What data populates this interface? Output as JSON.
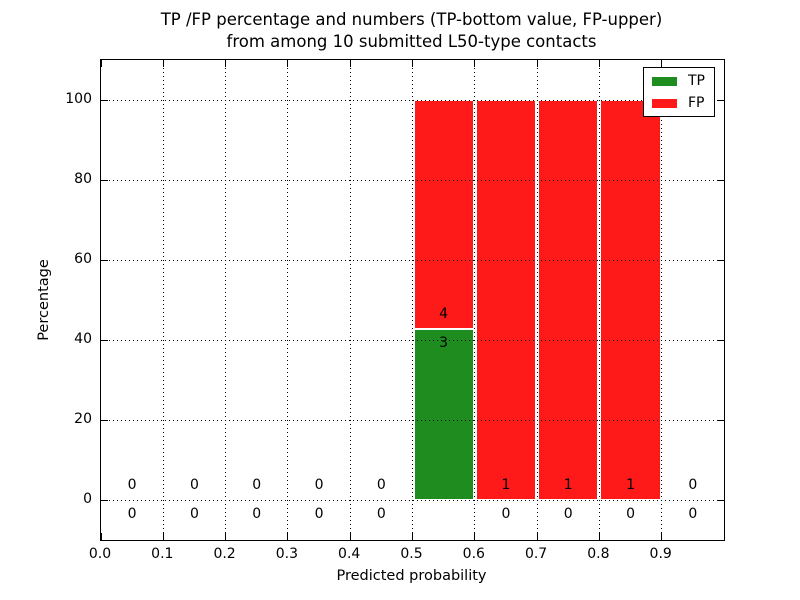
{
  "chart_data": {
    "type": "bar",
    "stacked": true,
    "title_line1": "TP /FP percentage and numbers (TP-bottom value, FP-upper)",
    "title_line2": "from among 10 submitted L50-type contacts",
    "xlabel": "Predicted probability",
    "ylabel": "Percentage",
    "xlim": [
      0.0,
      1.0
    ],
    "ylim": [
      -10,
      110
    ],
    "xticks": [
      "0.0",
      "0.1",
      "0.2",
      "0.3",
      "0.4",
      "0.5",
      "0.6",
      "0.7",
      "0.8",
      "0.9"
    ],
    "yticks": [
      0,
      20,
      40,
      60,
      80,
      100
    ],
    "grid": "dotted black, both axes, drawn above bars",
    "bin_width": 0.1,
    "bins": [
      {
        "x_center": 0.05,
        "tp_count": 0,
        "fp_count": 0,
        "tp_pct": 0,
        "fp_pct": 0
      },
      {
        "x_center": 0.15,
        "tp_count": 0,
        "fp_count": 0,
        "tp_pct": 0,
        "fp_pct": 0
      },
      {
        "x_center": 0.25,
        "tp_count": 0,
        "fp_count": 0,
        "tp_pct": 0,
        "fp_pct": 0
      },
      {
        "x_center": 0.35,
        "tp_count": 0,
        "fp_count": 0,
        "tp_pct": 0,
        "fp_pct": 0
      },
      {
        "x_center": 0.45,
        "tp_count": 0,
        "fp_count": 0,
        "tp_pct": 0,
        "fp_pct": 0
      },
      {
        "x_center": 0.55,
        "tp_count": 3,
        "fp_count": 4,
        "tp_pct": 42.86,
        "fp_pct": 57.14
      },
      {
        "x_center": 0.65,
        "tp_count": 0,
        "fp_count": 1,
        "tp_pct": 0,
        "fp_pct": 100
      },
      {
        "x_center": 0.75,
        "tp_count": 0,
        "fp_count": 1,
        "tp_pct": 0,
        "fp_pct": 100
      },
      {
        "x_center": 0.85,
        "tp_count": 0,
        "fp_count": 1,
        "tp_pct": 0,
        "fp_pct": 100
      },
      {
        "x_center": 0.95,
        "tp_count": 0,
        "fp_count": 0,
        "tp_pct": 0,
        "fp_pct": 0
      }
    ],
    "legend": {
      "position": "upper right",
      "entries": [
        {
          "label": "TP",
          "color": "#1e8c1e"
        },
        {
          "label": "FP",
          "color": "#ff1a1a"
        }
      ]
    },
    "colors": {
      "tp": "#1e8c1e",
      "fp": "#ff1a1a",
      "text": "#000000",
      "grid": "#000000",
      "background": "#ffffff"
    }
  }
}
